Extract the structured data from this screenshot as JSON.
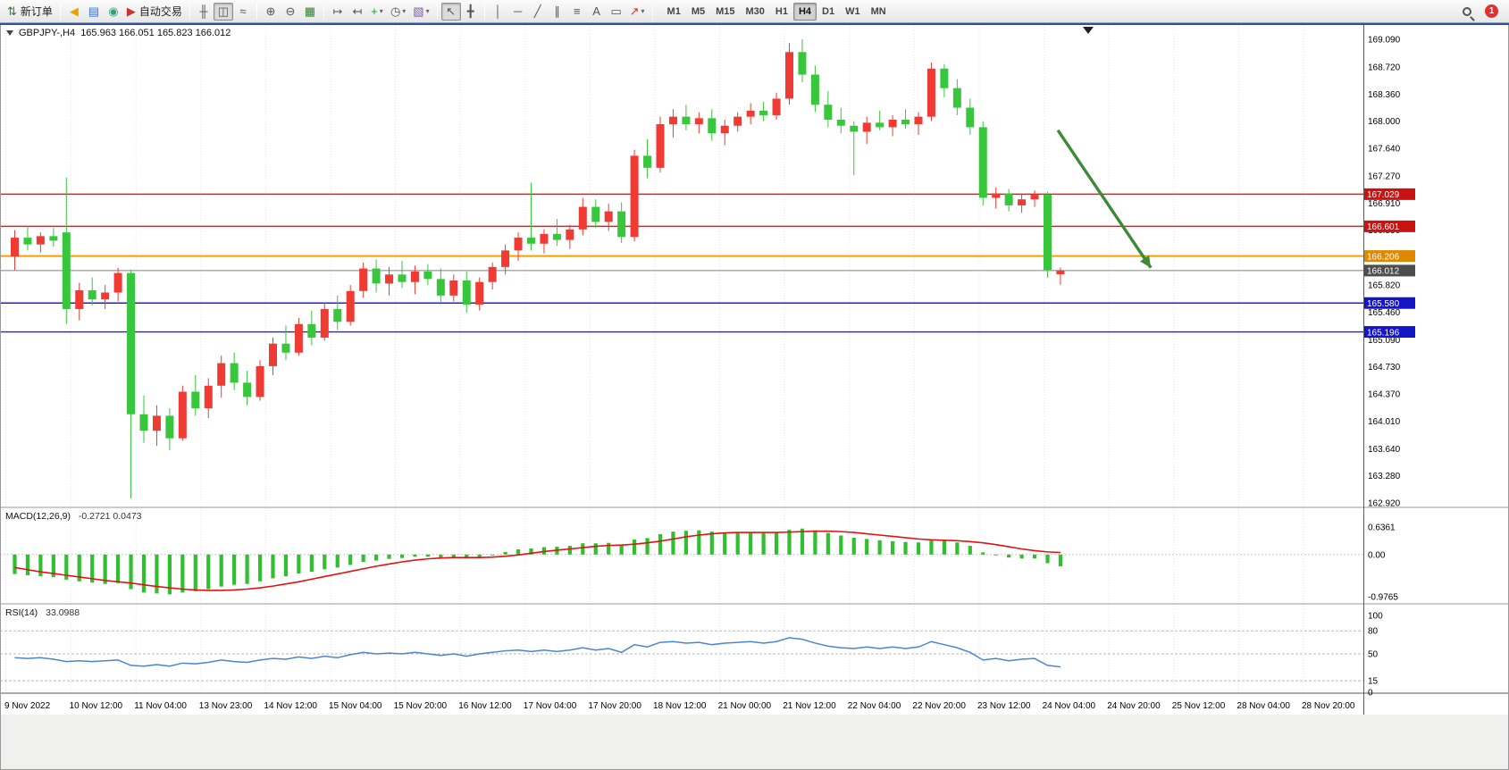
{
  "toolbar": {
    "groups": [
      [
        {
          "name": "new-order",
          "glyph": "⇅",
          "color": "#2e7d32",
          "label": "新订单"
        }
      ],
      [
        {
          "name": "announcement",
          "glyph": "◀",
          "color": "#e6a400"
        },
        {
          "name": "market-depth",
          "glyph": "▤",
          "color": "#3a6fd8"
        },
        {
          "name": "community",
          "glyph": "◉",
          "color": "#2aa17a"
        },
        {
          "name": "auto-trading",
          "glyph": "▶",
          "color": "#cc3333",
          "label": "自动交易"
        }
      ],
      [
        {
          "name": "bar-chart",
          "glyph": "╫"
        },
        {
          "name": "candle-chart",
          "glyph": "◫",
          "pressed": true
        },
        {
          "name": "line-chart",
          "glyph": "≈"
        }
      ],
      [
        {
          "name": "zoom-in",
          "glyph": "⊕"
        },
        {
          "name": "zoom-out",
          "glyph": "⊖"
        },
        {
          "name": "tile-windows",
          "glyph": "▦",
          "color": "#3a7a3a"
        }
      ],
      [
        {
          "name": "auto-scroll",
          "glyph": "↦"
        },
        {
          "name": "chart-shift",
          "glyph": "↤"
        },
        {
          "name": "indicators",
          "glyph": "+",
          "color": "#18a018",
          "dd": true
        },
        {
          "name": "periods",
          "glyph": "◷",
          "dd": true
        },
        {
          "name": "templates",
          "glyph": "▧",
          "color": "#7a5fa0",
          "dd": true
        }
      ],
      [
        {
          "name": "cursor",
          "glyph": "↖",
          "pressed": true
        },
        {
          "name": "crosshair",
          "glyph": "╋"
        }
      ],
      [
        {
          "name": "vertical-line",
          "glyph": "│"
        },
        {
          "name": "horizontal-line",
          "glyph": "─"
        },
        {
          "name": "trend-line",
          "glyph": "╱"
        },
        {
          "name": "channel",
          "glyph": "∥"
        },
        {
          "name": "fibonacci",
          "glyph": "≡"
        },
        {
          "name": "text",
          "glyph": "A"
        },
        {
          "name": "text-label",
          "glyph": "▭"
        },
        {
          "name": "arrows",
          "glyph": "↗",
          "color": "#cc3333",
          "dd": true
        }
      ]
    ],
    "timeframes": [
      "M1",
      "M5",
      "M15",
      "M30",
      "H1",
      "H4",
      "D1",
      "W1",
      "MN"
    ],
    "active_timeframe": "H4",
    "notification_count": "1"
  },
  "chart_title": {
    "symbol_period": "GBPJPY-,H4",
    "ohlc": "165.963 166.051 165.823 166.012"
  },
  "indicators": {
    "macd": {
      "name": "MACD(12,26,9)",
      "values": "-0.2721 0.0473"
    },
    "rsi": {
      "name": "RSI(14)",
      "values": "33.0988"
    }
  },
  "chart_data": {
    "type": "candlestick",
    "symbol": "GBPJPY-",
    "period": "H4",
    "colors": {
      "up": "#ef3b33",
      "down": "#38c63c",
      "macd_hist": "#2fbf2f",
      "macd_signal": "#e31212",
      "rsi_line": "#4a86d0"
    },
    "price_axis": [
      169.09,
      168.72,
      168.36,
      168.0,
      167.64,
      167.27,
      166.91,
      166.55,
      166.19,
      165.82,
      165.46,
      165.09,
      164.73,
      164.37,
      164.01,
      163.64,
      163.28,
      162.92
    ],
    "price_levels": [
      {
        "price": 167.029,
        "label": "167.029",
        "line": "#e02020",
        "tag": "#cc1111",
        "width": 1.4
      },
      {
        "price": 166.601,
        "label": "166.601",
        "line": "#e02020",
        "tag": "#cc1111",
        "width": 1.4
      },
      {
        "price": 166.206,
        "label": "166.206",
        "line": "#f0a000",
        "tag": "#e08900",
        "width": 2
      },
      {
        "price": 166.012,
        "label": "166.012",
        "line": "#808080",
        "tag": "#4d4d4d",
        "width": 1
      },
      {
        "price": 165.58,
        "label": "165.580",
        "line": "#2020d0",
        "t": "",
        "tag": "#1414c8",
        "width": 1.4
      },
      {
        "price": 165.196,
        "label": "165.196",
        "line": "#2020d0",
        "tag": "#1414c8",
        "width": 1.4
      }
    ],
    "candles": [
      [
        166.2,
        166.55,
        166.02,
        166.45
      ],
      [
        166.45,
        166.6,
        166.28,
        166.36
      ],
      [
        166.36,
        166.52,
        166.25,
        166.47
      ],
      [
        166.47,
        166.58,
        166.33,
        166.41
      ],
      [
        166.52,
        167.25,
        165.3,
        165.5
      ],
      [
        165.5,
        165.85,
        165.35,
        165.75
      ],
      [
        165.75,
        165.92,
        165.55,
        165.63
      ],
      [
        165.63,
        165.82,
        165.5,
        165.72
      ],
      [
        165.72,
        166.05,
        165.6,
        165.98
      ],
      [
        165.98,
        166.02,
        162.98,
        164.1
      ],
      [
        164.1,
        164.35,
        163.72,
        163.88
      ],
      [
        163.88,
        164.22,
        163.68,
        164.08
      ],
      [
        164.08,
        164.18,
        163.62,
        163.78
      ],
      [
        163.78,
        164.48,
        163.75,
        164.4
      ],
      [
        164.4,
        164.62,
        164.08,
        164.18
      ],
      [
        164.18,
        164.58,
        164.05,
        164.48
      ],
      [
        164.48,
        164.88,
        164.32,
        164.78
      ],
      [
        164.78,
        164.92,
        164.42,
        164.52
      ],
      [
        164.52,
        164.68,
        164.22,
        164.33
      ],
      [
        164.33,
        164.82,
        164.28,
        164.74
      ],
      [
        164.74,
        165.12,
        164.62,
        165.04
      ],
      [
        165.04,
        165.28,
        164.82,
        164.92
      ],
      [
        164.92,
        165.38,
        164.88,
        165.3
      ],
      [
        165.3,
        165.48,
        165.02,
        165.12
      ],
      [
        165.12,
        165.58,
        165.08,
        165.5
      ],
      [
        165.5,
        165.68,
        165.22,
        165.33
      ],
      [
        165.33,
        165.82,
        165.28,
        165.74
      ],
      [
        165.74,
        166.12,
        165.65,
        166.04
      ],
      [
        166.04,
        166.16,
        165.72,
        165.84
      ],
      [
        165.84,
        166.06,
        165.68,
        165.96
      ],
      [
        165.96,
        166.14,
        165.78,
        165.86
      ],
      [
        165.86,
        166.08,
        165.7,
        166.0
      ],
      [
        166.0,
        166.1,
        165.82,
        165.9
      ],
      [
        165.9,
        166.04,
        165.58,
        165.68
      ],
      [
        165.68,
        165.96,
        165.6,
        165.88
      ],
      [
        165.88,
        166.0,
        165.45,
        165.56
      ],
      [
        165.56,
        165.92,
        165.48,
        165.86
      ],
      [
        165.86,
        166.12,
        165.76,
        166.06
      ],
      [
        166.06,
        166.36,
        165.96,
        166.28
      ],
      [
        166.28,
        166.52,
        166.14,
        166.45
      ],
      [
        166.45,
        167.18,
        166.28,
        166.37
      ],
      [
        166.37,
        166.56,
        166.24,
        166.5
      ],
      [
        166.5,
        166.7,
        166.34,
        166.42
      ],
      [
        166.42,
        166.62,
        166.3,
        166.56
      ],
      [
        166.56,
        166.98,
        166.48,
        166.86
      ],
      [
        166.86,
        166.96,
        166.58,
        166.66
      ],
      [
        166.66,
        166.9,
        166.54,
        166.8
      ],
      [
        166.8,
        166.92,
        166.38,
        166.46
      ],
      [
        166.46,
        167.62,
        166.4,
        167.54
      ],
      [
        167.54,
        167.76,
        167.24,
        167.38
      ],
      [
        167.38,
        168.06,
        167.32,
        167.96
      ],
      [
        167.96,
        168.16,
        167.78,
        168.06
      ],
      [
        168.06,
        168.22,
        167.88,
        167.96
      ],
      [
        167.96,
        168.12,
        167.84,
        168.04
      ],
      [
        168.04,
        168.16,
        167.74,
        167.84
      ],
      [
        167.84,
        168.02,
        167.68,
        167.94
      ],
      [
        167.94,
        168.12,
        167.86,
        168.06
      ],
      [
        168.06,
        168.24,
        167.96,
        168.14
      ],
      [
        168.14,
        168.26,
        168.0,
        168.08
      ],
      [
        168.08,
        168.38,
        168.02,
        168.3
      ],
      [
        168.3,
        169.04,
        168.22,
        168.92
      ],
      [
        168.92,
        169.09,
        168.52,
        168.62
      ],
      [
        168.62,
        168.74,
        168.12,
        168.22
      ],
      [
        168.22,
        168.4,
        167.92,
        168.02
      ],
      [
        168.02,
        168.18,
        167.84,
        167.94
      ],
      [
        167.94,
        168.0,
        167.28,
        167.86
      ],
      [
        167.86,
        168.06,
        167.7,
        167.98
      ],
      [
        167.98,
        168.14,
        167.88,
        167.92
      ],
      [
        167.92,
        168.08,
        167.8,
        168.02
      ],
      [
        168.02,
        168.16,
        167.9,
        167.96
      ],
      [
        167.96,
        168.12,
        167.82,
        168.06
      ],
      [
        168.06,
        168.78,
        168.0,
        168.7
      ],
      [
        168.7,
        168.76,
        168.32,
        168.44
      ],
      [
        168.44,
        168.56,
        168.08,
        168.18
      ],
      [
        168.18,
        168.3,
        167.82,
        167.92
      ],
      [
        167.92,
        168.0,
        166.88,
        166.98
      ],
      [
        166.98,
        167.12,
        166.84,
        167.04
      ],
      [
        167.04,
        167.1,
        166.8,
        166.88
      ],
      [
        166.88,
        167.02,
        166.78,
        166.96
      ],
      [
        166.96,
        167.08,
        166.86,
        167.02
      ],
      [
        167.02,
        167.06,
        165.92,
        166.02
      ],
      [
        165.963,
        166.051,
        165.823,
        166.012
      ]
    ],
    "x_labels": [
      "9 Nov 2022",
      "10 Nov 12:00",
      "11 Nov 04:00",
      "13 Nov 23:00",
      "14 Nov 12:00",
      "15 Nov 04:00",
      "15 Nov 20:00",
      "16 Nov 12:00",
      "17 Nov 04:00",
      "17 Nov 20:00",
      "18 Nov 12:00",
      "21 Nov 00:00",
      "21 Nov 12:00",
      "22 Nov 04:00",
      "22 Nov 20:00",
      "23 Nov 12:00",
      "24 Nov 04:00",
      "24 Nov 20:00",
      "25 Nov 12:00",
      "28 Nov 04:00",
      "28 Nov 20:00"
    ],
    "arrow": {
      "from_bar": 80.8,
      "from_price": 167.88,
      "to_bar": 88,
      "to_price": 166.05,
      "color": "#3d8b37"
    },
    "macd": {
      "hist": [
        -0.45,
        -0.48,
        -0.5,
        -0.52,
        -0.58,
        -0.62,
        -0.65,
        -0.68,
        -0.66,
        -0.8,
        -0.88,
        -0.9,
        -0.92,
        -0.88,
        -0.85,
        -0.8,
        -0.74,
        -0.7,
        -0.68,
        -0.62,
        -0.55,
        -0.5,
        -0.44,
        -0.4,
        -0.34,
        -0.3,
        -0.24,
        -0.17,
        -0.14,
        -0.1,
        -0.08,
        -0.05,
        -0.05,
        -0.08,
        -0.07,
        -0.09,
        -0.06,
        0.0,
        0.06,
        0.12,
        0.14,
        0.17,
        0.18,
        0.2,
        0.26,
        0.26,
        0.27,
        0.22,
        0.35,
        0.38,
        0.47,
        0.53,
        0.55,
        0.56,
        0.53,
        0.51,
        0.5,
        0.51,
        0.5,
        0.51,
        0.57,
        0.6,
        0.56,
        0.5,
        0.44,
        0.39,
        0.36,
        0.33,
        0.31,
        0.29,
        0.28,
        0.33,
        0.33,
        0.28,
        0.2,
        0.05,
        -0.02,
        -0.07,
        -0.09,
        -0.09,
        -0.2,
        -0.2721
      ],
      "signal": [
        -0.3,
        -0.35,
        -0.4,
        -0.44,
        -0.48,
        -0.52,
        -0.56,
        -0.6,
        -0.63,
        -0.66,
        -0.7,
        -0.74,
        -0.77,
        -0.8,
        -0.82,
        -0.83,
        -0.83,
        -0.82,
        -0.8,
        -0.77,
        -0.73,
        -0.68,
        -0.63,
        -0.57,
        -0.51,
        -0.45,
        -0.39,
        -0.33,
        -0.27,
        -0.22,
        -0.17,
        -0.13,
        -0.1,
        -0.08,
        -0.07,
        -0.07,
        -0.07,
        -0.06,
        -0.04,
        -0.01,
        0.03,
        0.07,
        0.1,
        0.13,
        0.16,
        0.19,
        0.21,
        0.22,
        0.24,
        0.27,
        0.31,
        0.36,
        0.41,
        0.45,
        0.48,
        0.5,
        0.51,
        0.51,
        0.51,
        0.51,
        0.52,
        0.53,
        0.54,
        0.54,
        0.53,
        0.51,
        0.48,
        0.45,
        0.42,
        0.39,
        0.36,
        0.34,
        0.33,
        0.32,
        0.3,
        0.27,
        0.23,
        0.18,
        0.13,
        0.09,
        0.06,
        0.0473
      ],
      "axis": [
        {
          "v": 0.6361,
          "t": "0.6361"
        },
        {
          "v": 0,
          "t": "0.00"
        },
        {
          "v": -0.9765,
          "t": "-0.9765"
        }
      ]
    },
    "rsi": {
      "values": [
        45,
        44,
        45,
        43,
        40,
        41,
        40,
        41,
        42,
        35,
        34,
        36,
        34,
        38,
        37,
        39,
        42,
        40,
        39,
        42,
        44,
        43,
        46,
        44,
        47,
        45,
        49,
        52,
        50,
        51,
        50,
        52,
        50,
        48,
        50,
        47,
        50,
        52,
        54,
        55,
        53,
        55,
        53,
        55,
        58,
        55,
        57,
        52,
        62,
        59,
        65,
        66,
        64,
        65,
        62,
        64,
        65,
        66,
        64,
        66,
        71,
        69,
        64,
        60,
        58,
        57,
        59,
        57,
        59,
        57,
        59,
        66,
        62,
        58,
        52,
        42,
        44,
        41,
        43,
        44,
        35,
        33.1
      ],
      "levels": [
        80,
        50,
        15
      ],
      "axis": [
        {
          "v": 100,
          "t": "100"
        },
        {
          "v": 80,
          "t": "80"
        },
        {
          "v": 50,
          "t": "50"
        },
        {
          "v": 15,
          "t": "15"
        },
        {
          "v": 0,
          "t": "0"
        }
      ]
    }
  }
}
